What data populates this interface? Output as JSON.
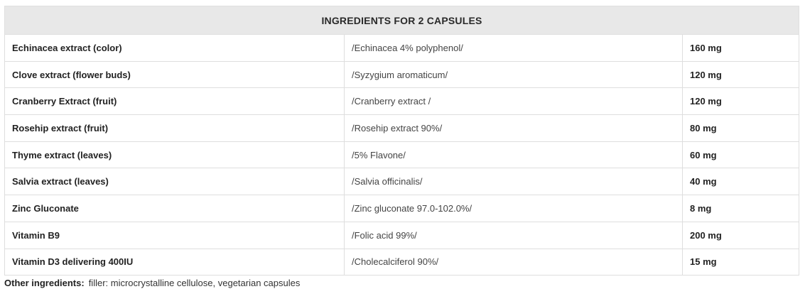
{
  "table": {
    "title": "INGREDIENTS FOR 2 CAPSULES",
    "rows": [
      {
        "name": "Echinacea extract (color)",
        "description": "/Echinacea 4% polyphenol/",
        "amount": "160 mg"
      },
      {
        "name": "Clove extract (flower buds)",
        "description": "/Syzygium aromaticum/",
        "amount": "120 mg"
      },
      {
        "name": "Cranberry Extract (fruit)",
        "description": "/Cranberry extract /",
        "amount": "120 mg"
      },
      {
        "name": "Rosehip extract (fruit)",
        "description": "/Rosehip extract 90%/",
        "amount": "80 mg"
      },
      {
        "name": "Thyme extract (leaves)",
        "description": "/5% Flavone/",
        "amount": "60 mg"
      },
      {
        "name": "Salvia extract (leaves)",
        "description": "/Salvia officinalis/",
        "amount": "40 mg"
      },
      {
        "name": "Zinc Gluconate",
        "description": "/Zinc gluconate 97.0-102.0%/",
        "amount": "8 mg"
      },
      {
        "name": "Vitamin B9",
        "description": "/Folic acid 99%/",
        "amount": "200 mg"
      },
      {
        "name": "Vitamin D3 delivering 400IU",
        "description": "/Cholecalciferol 90%/",
        "amount": "15 mg"
      }
    ]
  },
  "other_ingredients": {
    "label": "Other ingredients:",
    "value": "filler: microcrystalline cellulose, vegetarian capsules"
  }
}
